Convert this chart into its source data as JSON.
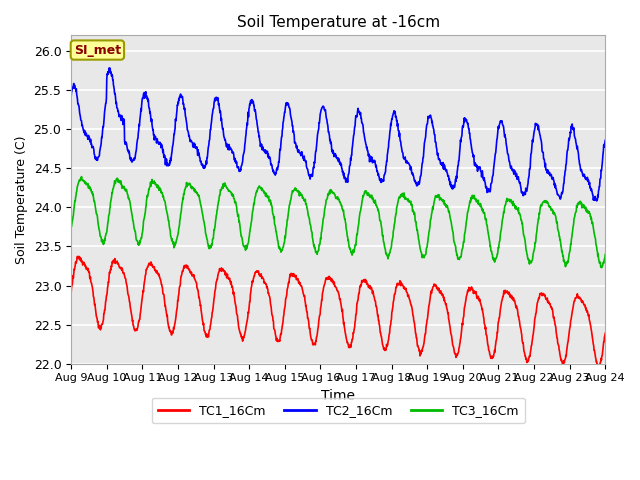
{
  "title": "Soil Temperature at -16cm",
  "xlabel": "Time",
  "ylabel": "Soil Temperature (C)",
  "ylim": [
    22.0,
    26.2
  ],
  "x_tick_labels": [
    "Aug 9",
    "Aug 10",
    "Aug 11",
    "Aug 12",
    "Aug 13",
    "Aug 14",
    "Aug 15",
    "Aug 16",
    "Aug 17",
    "Aug 18",
    "Aug 19",
    "Aug 20",
    "Aug 21",
    "Aug 22",
    "Aug 23",
    "Aug 24"
  ],
  "yticks": [
    22.0,
    22.5,
    23.0,
    23.5,
    24.0,
    24.5,
    25.0,
    25.5,
    26.0
  ],
  "colors": {
    "TC1": "#ff0000",
    "TC2": "#0000ff",
    "TC3": "#00bb00"
  },
  "legend_labels": [
    "TC1_16Cm",
    "TC2_16Cm",
    "TC3_16Cm"
  ],
  "annotation_text": "SI_met",
  "bg_color": "#e8e8e8",
  "fig_bg": "#ffffff",
  "linewidth": 1.2,
  "TC1_base": 23.0,
  "TC1_amp": 0.42,
  "TC1_amp2": 0.1,
  "TC1_trend": -0.035,
  "TC2_base": 25.05,
  "TC2_amp": 0.38,
  "TC2_amp2": 0.15,
  "TC2_trend": -0.038,
  "TC3_base": 24.05,
  "TC3_amp": 0.38,
  "TC3_amp2": 0.1,
  "TC3_trend": -0.022,
  "period_days": 1.0,
  "n_points": 1440
}
